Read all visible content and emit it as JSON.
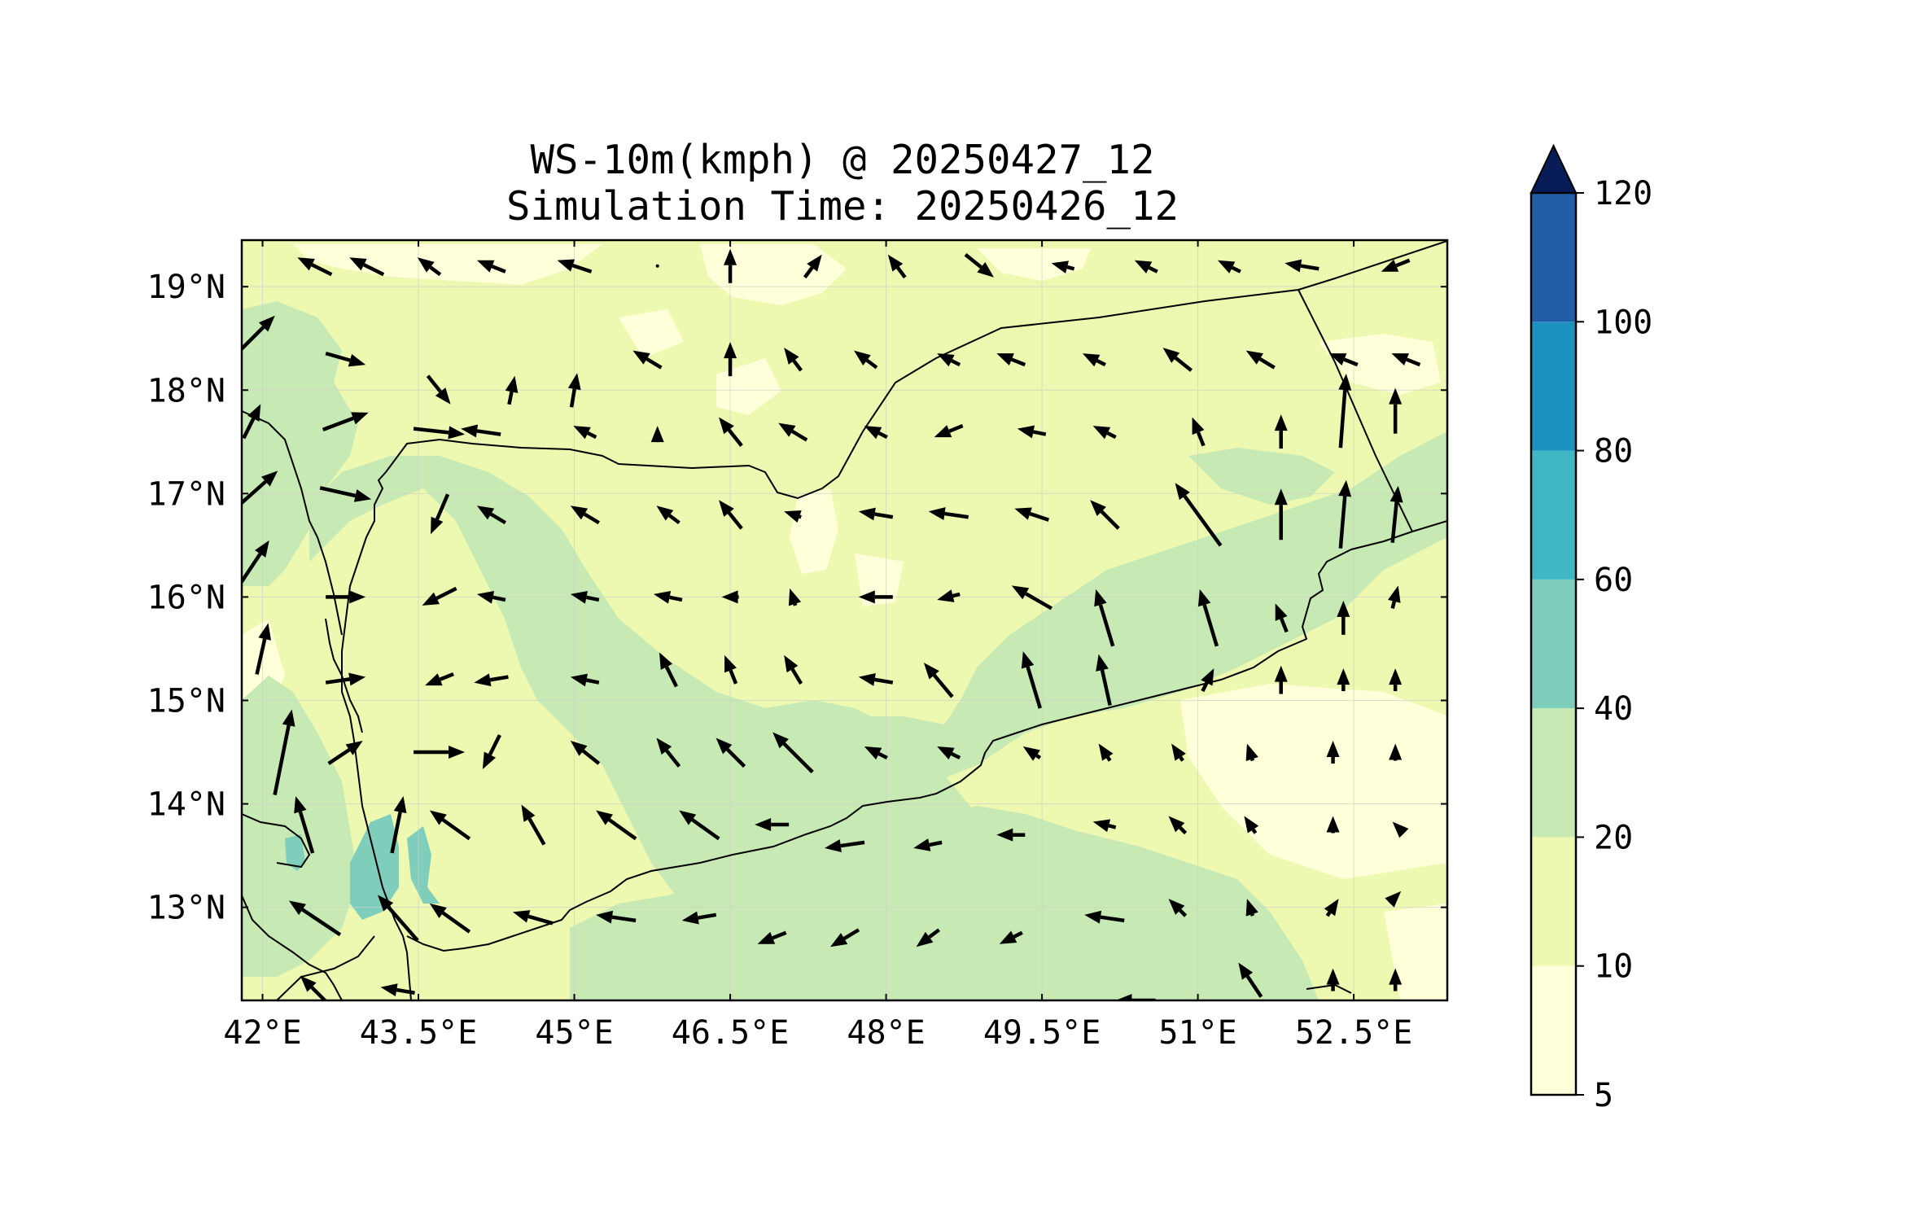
{
  "title": "WS-10m(kmph) @ 20250427_12",
  "subtitle": "Simulation Time: 20250426_12",
  "map": {
    "lon_range": [
      41.8,
      53.4
    ],
    "lat_range": [
      12.1,
      19.45
    ],
    "lon_ticks": [
      42,
      43.5,
      45,
      46.5,
      48,
      49.5,
      51,
      52.5
    ],
    "lon_tick_labels": [
      "42°E",
      "43.5°E",
      "45°E",
      "46.5°E",
      "48°E",
      "49.5°E",
      "51°E",
      "52.5°E"
    ],
    "lat_ticks": [
      13,
      14,
      15,
      16,
      17,
      18,
      19
    ],
    "lat_tick_labels": [
      "13°N",
      "14°N",
      "15°N",
      "16°N",
      "17°N",
      "18°N",
      "19°N"
    ],
    "grid": true
  },
  "colorbar": {
    "levels": [
      5,
      10,
      20,
      40,
      60,
      80,
      100,
      120
    ],
    "tick_labels": [
      "5",
      "10",
      "20",
      "40",
      "60",
      "80",
      "100",
      "120"
    ],
    "colors": [
      "#ffffd9",
      "#edf8b1",
      "#c7e9b4",
      "#7fcdbb",
      "#41b6c4",
      "#1d91c0",
      "#225ea8",
      "#253494"
    ],
    "extend_color": "#081d58",
    "extend": "max"
  },
  "chart_data": {
    "type": "quiver",
    "quantity": "10 m wind speed (kmph) with wind direction vectors",
    "vectors": [
      [
        42.5,
        19.2,
        -0.6,
        0.3
      ],
      [
        43.0,
        19.2,
        -0.6,
        0.3
      ],
      [
        43.6,
        19.2,
        -0.4,
        0.3
      ],
      [
        44.2,
        19.2,
        -0.5,
        0.2
      ],
      [
        45.0,
        19.2,
        -0.6,
        0.2
      ],
      [
        45.8,
        19.2,
        0,
        0
      ],
      [
        46.5,
        19.2,
        0,
        0.6
      ],
      [
        47.3,
        19.2,
        0.3,
        0.4
      ],
      [
        48.1,
        19.2,
        -0.3,
        0.4
      ],
      [
        48.9,
        19.2,
        0.5,
        -0.4
      ],
      [
        49.7,
        19.2,
        -0.4,
        0.1
      ],
      [
        50.5,
        19.2,
        -0.4,
        0.2
      ],
      [
        51.3,
        19.2,
        -0.4,
        0.2
      ],
      [
        52.0,
        19.2,
        -0.6,
        0.1
      ],
      [
        52.9,
        19.2,
        -0.5,
        -0.2
      ],
      [
        41.9,
        18.5,
        0.8,
        0.8
      ],
      [
        42.8,
        18.3,
        0.7,
        -0.2
      ],
      [
        43.7,
        18.0,
        0.4,
        -0.5
      ],
      [
        44.4,
        18.0,
        0.1,
        0.5
      ],
      [
        45.0,
        18.0,
        0.1,
        0.6
      ],
      [
        45.7,
        18.3,
        -0.5,
        0.3
      ],
      [
        46.5,
        18.3,
        0,
        0.6
      ],
      [
        47.1,
        18.3,
        -0.3,
        0.4
      ],
      [
        47.8,
        18.3,
        -0.4,
        0.3
      ],
      [
        48.6,
        18.3,
        -0.4,
        0.2
      ],
      [
        49.2,
        18.3,
        -0.5,
        0.2
      ],
      [
        50.0,
        18.3,
        -0.4,
        0.2
      ],
      [
        50.8,
        18.3,
        -0.5,
        0.4
      ],
      [
        51.6,
        18.3,
        -0.5,
        0.3
      ],
      [
        52.4,
        18.3,
        -0.5,
        0.2
      ],
      [
        53.0,
        18.3,
        -0.5,
        0.2
      ],
      [
        41.9,
        17.7,
        0.3,
        0.6
      ],
      [
        42.8,
        17.7,
        0.8,
        0.3
      ],
      [
        43.7,
        17.6,
        0.9,
        -0.1
      ],
      [
        44.1,
        17.6,
        -0.7,
        0.1
      ],
      [
        45.1,
        17.6,
        -0.4,
        0.2
      ],
      [
        45.8,
        17.6,
        0,
        0.2
      ],
      [
        46.5,
        17.6,
        -0.4,
        0.5
      ],
      [
        47.1,
        17.6,
        -0.5,
        0.3
      ],
      [
        47.9,
        17.6,
        -0.4,
        0.2
      ],
      [
        48.6,
        17.6,
        -0.5,
        -0.2
      ],
      [
        49.4,
        17.6,
        -0.5,
        0.1
      ],
      [
        50.1,
        17.6,
        -0.4,
        0.2
      ],
      [
        51.0,
        17.6,
        -0.2,
        0.5
      ],
      [
        51.8,
        17.6,
        0,
        0.6
      ],
      [
        52.4,
        17.8,
        0.1,
        1.3
      ],
      [
        52.9,
        17.8,
        0,
        0.8
      ],
      [
        41.9,
        17.0,
        0.9,
        0.8
      ],
      [
        42.8,
        17.0,
        0.9,
        -0.2
      ],
      [
        43.7,
        16.8,
        -0.3,
        -0.7
      ],
      [
        44.2,
        16.8,
        -0.5,
        0.3
      ],
      [
        45.1,
        16.8,
        -0.5,
        0.3
      ],
      [
        45.9,
        16.8,
        -0.4,
        0.3
      ],
      [
        46.5,
        16.8,
        -0.4,
        0.5
      ],
      [
        47.1,
        16.8,
        -0.3,
        0.1
      ],
      [
        47.9,
        16.8,
        -0.6,
        0.1
      ],
      [
        48.6,
        16.8,
        -0.7,
        0.1
      ],
      [
        49.4,
        16.8,
        -0.6,
        0.2
      ],
      [
        50.1,
        16.8,
        -0.5,
        0.5
      ],
      [
        51.0,
        16.8,
        -0.8,
        1.1
      ],
      [
        51.8,
        16.8,
        0,
        0.9
      ],
      [
        52.4,
        16.8,
        0.1,
        1.2
      ],
      [
        52.9,
        16.8,
        0.1,
        1.0
      ],
      [
        41.9,
        16.3,
        0.6,
        0.9
      ],
      [
        42.8,
        16.0,
        0.7,
        0.0
      ],
      [
        43.7,
        16.0,
        -0.6,
        -0.3
      ],
      [
        44.2,
        16.0,
        -0.5,
        0.1
      ],
      [
        45.1,
        16.0,
        -0.5,
        0.1
      ],
      [
        45.9,
        16.0,
        -0.5,
        0.1
      ],
      [
        46.5,
        16.0,
        -0.3,
        0.0
      ],
      [
        47.1,
        16.0,
        -0.1,
        0.3
      ],
      [
        47.9,
        16.0,
        -0.6,
        0.0
      ],
      [
        48.6,
        16.0,
        -0.4,
        -0.1
      ],
      [
        49.4,
        16.0,
        -0.7,
        0.4
      ],
      [
        50.1,
        15.8,
        -0.3,
        1.0
      ],
      [
        51.1,
        15.8,
        -0.3,
        1.0
      ],
      [
        51.8,
        15.8,
        -0.2,
        0.5
      ],
      [
        52.4,
        15.8,
        0,
        0.6
      ],
      [
        52.9,
        16.0,
        0.1,
        0.4
      ],
      [
        42.0,
        15.5,
        0.2,
        0.9
      ],
      [
        42.8,
        15.2,
        0.7,
        0.1
      ],
      [
        43.7,
        15.2,
        -0.5,
        -0.2
      ],
      [
        44.2,
        15.2,
        -0.6,
        -0.1
      ],
      [
        45.1,
        15.2,
        -0.5,
        0.1
      ],
      [
        45.9,
        15.3,
        -0.3,
        0.6
      ],
      [
        46.5,
        15.3,
        -0.2,
        0.5
      ],
      [
        47.1,
        15.3,
        -0.3,
        0.5
      ],
      [
        47.9,
        15.2,
        -0.6,
        0.1
      ],
      [
        48.5,
        15.2,
        -0.5,
        0.6
      ],
      [
        49.4,
        15.2,
        -0.3,
        1.0
      ],
      [
        50.1,
        15.2,
        -0.2,
        0.9
      ],
      [
        51.1,
        15.2,
        0.2,
        0.4
      ],
      [
        51.8,
        15.2,
        0,
        0.5
      ],
      [
        52.4,
        15.2,
        0,
        0.4
      ],
      [
        52.9,
        15.2,
        0,
        0.4
      ],
      [
        42.2,
        14.5,
        0.3,
        1.5
      ],
      [
        42.8,
        14.5,
        0.6,
        0.4
      ],
      [
        43.7,
        14.5,
        0.9,
        0.0
      ],
      [
        44.2,
        14.5,
        -0.3,
        -0.6
      ],
      [
        45.1,
        14.5,
        -0.5,
        0.4
      ],
      [
        45.9,
        14.5,
        -0.4,
        0.5
      ],
      [
        46.5,
        14.5,
        -0.5,
        0.5
      ],
      [
        47.1,
        14.5,
        -0.7,
        0.7
      ],
      [
        47.9,
        14.5,
        -0.4,
        0.2
      ],
      [
        48.6,
        14.5,
        -0.4,
        0.2
      ],
      [
        49.4,
        14.5,
        -0.3,
        0.2
      ],
      [
        50.1,
        14.5,
        -0.2,
        0.3
      ],
      [
        50.8,
        14.5,
        -0.2,
        0.3
      ],
      [
        51.5,
        14.5,
        -0.1,
        0.3
      ],
      [
        52.3,
        14.5,
        0,
        0.4
      ],
      [
        52.9,
        14.5,
        0,
        0.3
      ],
      [
        42.4,
        13.8,
        -0.3,
        1.0
      ],
      [
        43.3,
        13.8,
        0.2,
        1.0
      ],
      [
        43.8,
        13.8,
        -0.7,
        0.5
      ],
      [
        44.6,
        13.8,
        -0.4,
        0.7
      ],
      [
        45.4,
        13.8,
        -0.7,
        0.5
      ],
      [
        46.2,
        13.8,
        -0.7,
        0.5
      ],
      [
        46.9,
        13.8,
        -0.6,
        0.0
      ],
      [
        47.6,
        13.6,
        -0.7,
        -0.1
      ],
      [
        48.4,
        13.6,
        -0.5,
        -0.1
      ],
      [
        49.2,
        13.7,
        -0.5,
        0.0
      ],
      [
        50.1,
        13.8,
        -0.4,
        0.1
      ],
      [
        50.8,
        13.8,
        -0.3,
        0.3
      ],
      [
        51.5,
        13.8,
        -0.2,
        0.3
      ],
      [
        52.3,
        13.8,
        0,
        0.3
      ],
      [
        52.9,
        13.8,
        -0.1,
        0.1
      ],
      [
        42.5,
        12.9,
        -0.9,
        0.6
      ],
      [
        43.3,
        12.9,
        -0.7,
        0.8
      ],
      [
        43.8,
        12.9,
        -0.7,
        0.5
      ],
      [
        44.6,
        12.9,
        -0.7,
        0.2
      ],
      [
        45.4,
        12.9,
        -0.7,
        0.1
      ],
      [
        46.2,
        12.9,
        -0.6,
        -0.1
      ],
      [
        46.9,
        12.7,
        -0.5,
        -0.2
      ],
      [
        47.6,
        12.7,
        -0.5,
        -0.3
      ],
      [
        48.4,
        12.7,
        -0.4,
        -0.3
      ],
      [
        49.2,
        12.7,
        -0.4,
        -0.2
      ],
      [
        50.1,
        12.9,
        -0.7,
        0.1
      ],
      [
        50.8,
        13.0,
        -0.3,
        0.3
      ],
      [
        51.5,
        13.0,
        -0.1,
        0.3
      ],
      [
        52.3,
        13.0,
        0.2,
        0.3
      ],
      [
        52.9,
        13.1,
        0.2,
        0.2
      ],
      [
        42.5,
        12.2,
        -0.5,
        0.5
      ],
      [
        43.3,
        12.2,
        -0.6,
        0.1
      ],
      [
        50.4,
        12.1,
        -0.7,
        0.0
      ],
      [
        51.5,
        12.3,
        -0.4,
        0.6
      ],
      [
        52.3,
        12.3,
        0,
        0.4
      ],
      [
        52.9,
        12.3,
        0,
        0.4
      ]
    ]
  }
}
